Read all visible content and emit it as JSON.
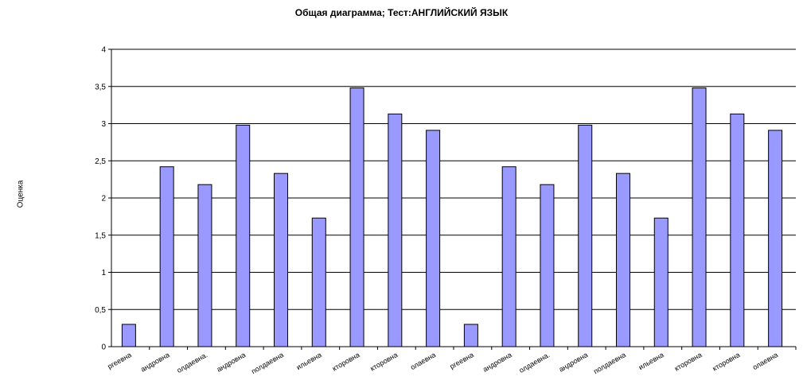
{
  "chart_data": {
    "type": "bar",
    "title": "Общая диаграмма; Тест:АНГЛИЙСКИЙ ЯЗЫК",
    "ylabel": "Оценка",
    "xlabel": "",
    "ylim": [
      0,
      4
    ],
    "ytick_labels": [
      "0",
      "0,5",
      "1",
      "1,5",
      "2",
      "2,5",
      "3",
      "3,5",
      "4"
    ],
    "grid": true,
    "bar_color": "#9999ff",
    "categories": [
      "ргеевна",
      "андровна",
      "олдаевна.",
      "андровна",
      "полдаевна",
      "ильевна",
      "кторовна",
      "кторовна",
      "олаевна",
      "ргеевна",
      "андровна",
      "олдаевна.",
      "андровна",
      "полдаевна",
      "ильевна",
      "кторовна",
      "кторовна",
      "олаевна"
    ],
    "values": [
      0.3,
      2.42,
      2.18,
      2.98,
      2.33,
      1.73,
      3.48,
      3.13,
      2.91,
      0.3,
      2.42,
      2.18,
      2.98,
      2.33,
      1.73,
      3.48,
      3.13,
      2.91
    ]
  }
}
